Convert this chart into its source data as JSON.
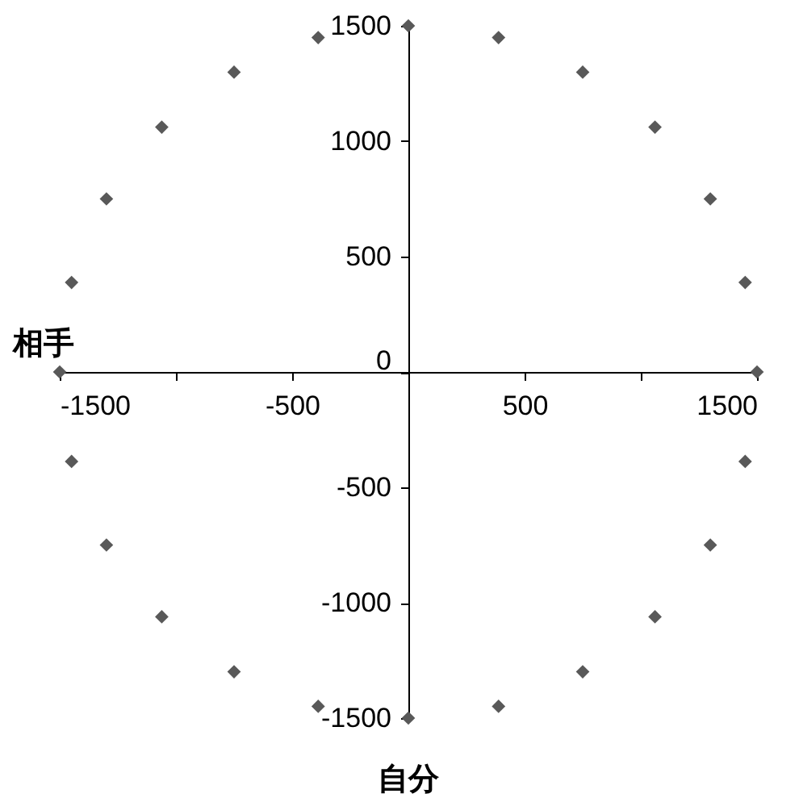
{
  "chart_data": {
    "type": "scatter",
    "xlabel": "自分",
    "ylabel": "相手",
    "x": [
      1500,
      1449,
      1299,
      1061,
      750,
      388,
      0,
      -388,
      -750,
      -1061,
      -1299,
      -1449,
      -1500,
      -1449,
      -1299,
      -1061,
      -750,
      -388,
      0,
      388,
      750,
      1061,
      1299,
      1449
    ],
    "series": [
      {
        "color": "#595959",
        "values": [
          0,
          388,
          750,
          1061,
          1299,
          1449,
          1500,
          1449,
          1299,
          1061,
          750,
          388,
          0,
          -388,
          -750,
          -1061,
          -1299,
          -1449,
          -1500,
          -1449,
          -1299,
          -1061,
          -750,
          -388
        ]
      }
    ],
    "marker": "diamond",
    "xlim": [
      -1500,
      1500
    ],
    "ylim": [
      -1500,
      1500
    ],
    "xticks": [
      -1500,
      {
        "value": -1000,
        "label": null
      },
      -500,
      {
        "value": 0,
        "label": null
      },
      500,
      {
        "value": 1000,
        "label": null
      },
      1500
    ],
    "yticks": [
      -1500,
      -1000,
      -500,
      0,
      500,
      1000,
      1500
    ],
    "grid": false
  }
}
